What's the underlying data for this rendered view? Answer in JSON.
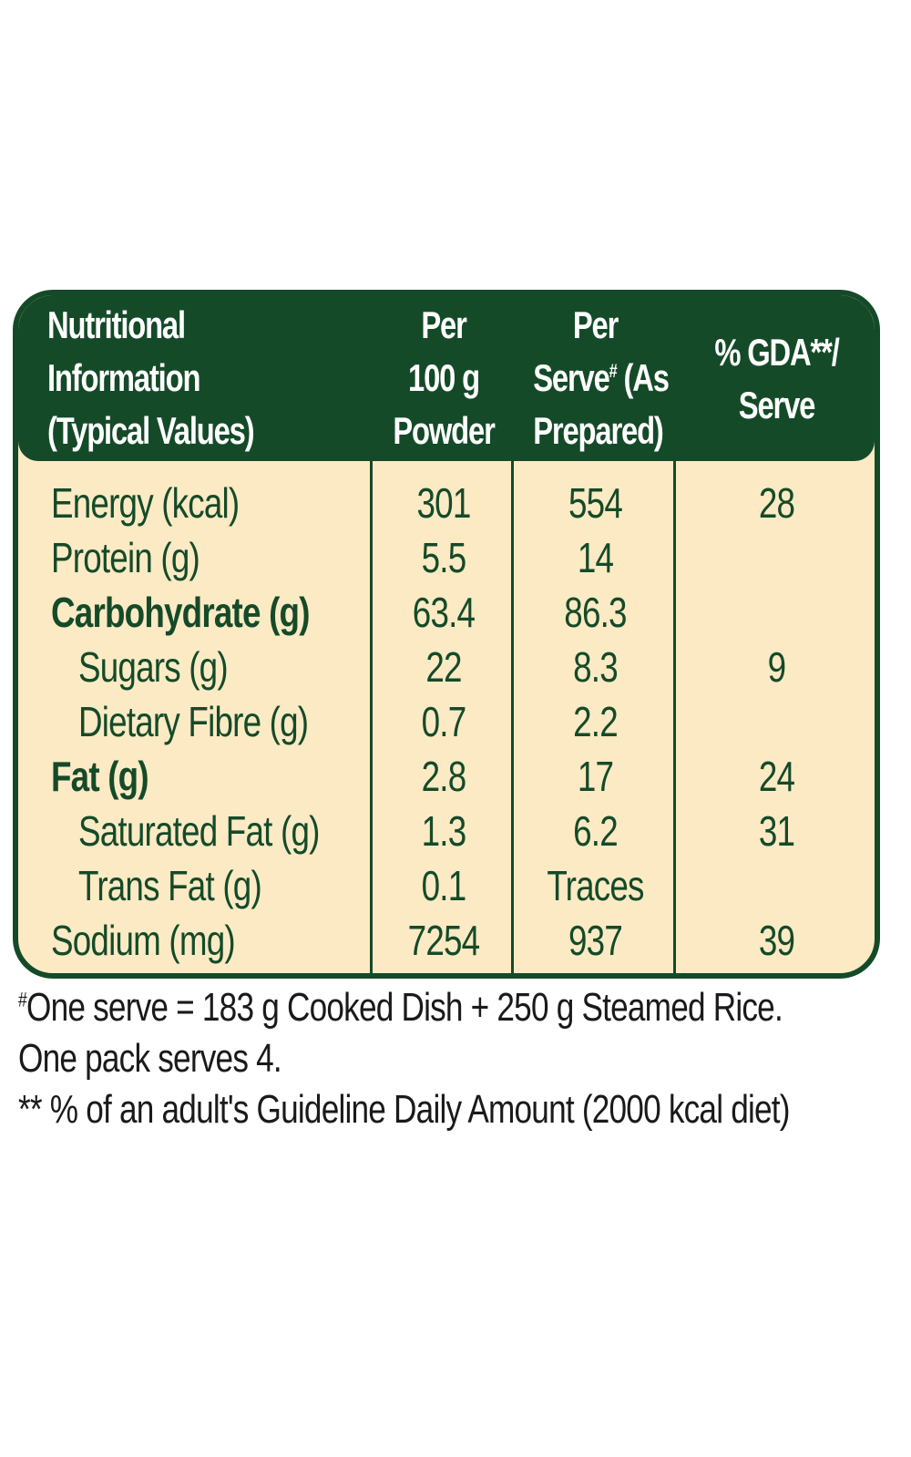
{
  "header": {
    "col0": [
      "Nutritional",
      "Information",
      "(Typical Values)"
    ],
    "col1": [
      "Per",
      "100 g",
      "Powder"
    ],
    "col2_line1": "Per",
    "col2_line2_a": "Serve",
    "col2_line2_sup": "#",
    "col2_line2_b": " (As",
    "col2_line3": "Prepared)",
    "col3": [
      "% GDA**/",
      "Serve"
    ]
  },
  "rows": [
    {
      "label": "Energy (kcal)",
      "per100": "301",
      "perServe": "554",
      "gda": "28"
    },
    {
      "label": "Protein (g)",
      "per100": "5.5",
      "perServe": "14",
      "gda": ""
    },
    {
      "label": "Carbohydrate (g)",
      "per100": "63.4",
      "perServe": "86.3",
      "gda": ""
    },
    {
      "label": "Sugars (g)",
      "per100": "22",
      "perServe": "8.3",
      "gda": "9"
    },
    {
      "label": "Dietary Fibre (g)",
      "per100": "0.7",
      "perServe": "2.2",
      "gda": ""
    },
    {
      "label": "Fat (g)",
      "per100": "2.8",
      "perServe": "17",
      "gda": "24"
    },
    {
      "label": "Saturated Fat (g)",
      "per100": "1.3",
      "perServe": "6.2",
      "gda": "31"
    },
    {
      "label": "Trans Fat (g)",
      "per100": "0.1",
      "perServe": "Traces",
      "gda": ""
    },
    {
      "label": "Sodium (mg)",
      "per100": "7254",
      "perServe": "937",
      "gda": "39"
    }
  ],
  "footnotes": {
    "line1_sup": "#",
    "line1": "One serve = 183 g Cooked Dish + 250 g Steamed Rice.",
    "line2": "One pack serves 4.",
    "line3": "** % of an adult's Guideline Daily Amount (2000 kcal diet)"
  },
  "colors": {
    "green": "#154a29",
    "cream": "#fbeac4"
  }
}
